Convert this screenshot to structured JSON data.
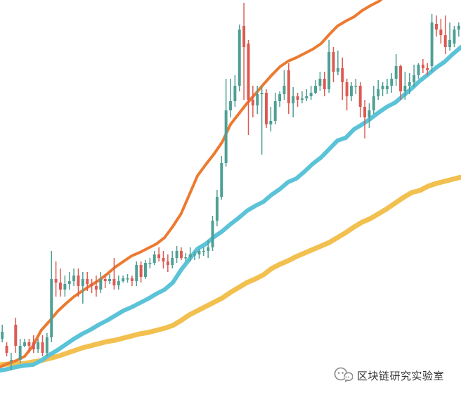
{
  "chart_data": {
    "type": "candlestick",
    "colors": {
      "up": "#4e9f94",
      "down": "#dc5a52",
      "ma_fast": "#ec7a30",
      "ma_mid": "#5bc3d8",
      "ma_slow": "#f2c04f"
    },
    "ylim": [
      0,
      562
    ],
    "candles": [
      {
        "o": 80,
        "c": 90,
        "h": 100,
        "l": 75
      },
      {
        "o": 70,
        "c": 60,
        "h": 75,
        "l": 55
      },
      {
        "o": 50,
        "c": 50,
        "h": 60,
        "l": 35
      },
      {
        "o": 100,
        "c": 70,
        "h": 110,
        "l": 60
      },
      {
        "o": 50,
        "c": 70,
        "h": 80,
        "l": 45
      },
      {
        "o": 70,
        "c": 75,
        "h": 80,
        "l": 68
      },
      {
        "o": 75,
        "c": 70,
        "h": 80,
        "l": 60
      },
      {
        "o": 75,
        "c": 65,
        "h": 85,
        "l": 60
      },
      {
        "o": 65,
        "c": 75,
        "h": 80,
        "l": 60
      },
      {
        "o": 75,
        "c": 60,
        "h": 85,
        "l": 55
      },
      {
        "o": 60,
        "c": 82,
        "h": 88,
        "l": 55
      },
      {
        "o": 82,
        "c": 165,
        "h": 205,
        "l": 75
      },
      {
        "o": 165,
        "c": 160,
        "h": 190,
        "l": 140
      },
      {
        "o": 160,
        "c": 150,
        "h": 180,
        "l": 140
      },
      {
        "o": 150,
        "c": 158,
        "h": 170,
        "l": 140
      },
      {
        "o": 158,
        "c": 162,
        "h": 175,
        "l": 150
      },
      {
        "o": 162,
        "c": 170,
        "h": 180,
        "l": 155
      },
      {
        "o": 170,
        "c": 155,
        "h": 180,
        "l": 140
      },
      {
        "o": 155,
        "c": 165,
        "h": 175,
        "l": 130
      },
      {
        "o": 165,
        "c": 158,
        "h": 175,
        "l": 148
      },
      {
        "o": 158,
        "c": 155,
        "h": 165,
        "l": 145
      },
      {
        "o": 155,
        "c": 150,
        "h": 170,
        "l": 140
      },
      {
        "o": 150,
        "c": 165,
        "h": 175,
        "l": 145
      },
      {
        "o": 165,
        "c": 162,
        "h": 170,
        "l": 152
      },
      {
        "o": 162,
        "c": 165,
        "h": 172,
        "l": 158
      },
      {
        "o": 165,
        "c": 156,
        "h": 195,
        "l": 150
      },
      {
        "o": 156,
        "c": 162,
        "h": 170,
        "l": 150
      },
      {
        "o": 162,
        "c": 166,
        "h": 170,
        "l": 160
      },
      {
        "o": 166,
        "c": 166,
        "h": 172,
        "l": 160
      },
      {
        "o": 166,
        "c": 162,
        "h": 170,
        "l": 155
      },
      {
        "o": 162,
        "c": 185,
        "h": 190,
        "l": 155
      },
      {
        "o": 185,
        "c": 168,
        "h": 190,
        "l": 160
      },
      {
        "o": 168,
        "c": 188,
        "h": 192,
        "l": 165
      },
      {
        "o": 188,
        "c": 188,
        "h": 195,
        "l": 180
      },
      {
        "o": 188,
        "c": 200,
        "h": 205,
        "l": 185
      },
      {
        "o": 200,
        "c": 195,
        "h": 210,
        "l": 190
      },
      {
        "o": 195,
        "c": 190,
        "h": 205,
        "l": 180
      },
      {
        "o": 190,
        "c": 185,
        "h": 200,
        "l": 175
      },
      {
        "o": 185,
        "c": 195,
        "h": 205,
        "l": 180
      },
      {
        "o": 195,
        "c": 205,
        "h": 212,
        "l": 188
      },
      {
        "o": 205,
        "c": 195,
        "h": 210,
        "l": 192
      },
      {
        "o": 195,
        "c": 196,
        "h": 202,
        "l": 190
      },
      {
        "o": 196,
        "c": 200,
        "h": 210,
        "l": 190
      },
      {
        "o": 200,
        "c": 200,
        "h": 205,
        "l": 192
      },
      {
        "o": 200,
        "c": 205,
        "h": 208,
        "l": 194
      },
      {
        "o": 205,
        "c": 205,
        "h": 210,
        "l": 198
      },
      {
        "o": 205,
        "c": 210,
        "h": 220,
        "l": 195
      },
      {
        "o": 210,
        "c": 248,
        "h": 255,
        "l": 205
      },
      {
        "o": 248,
        "c": 282,
        "h": 292,
        "l": 240
      },
      {
        "o": 282,
        "c": 330,
        "h": 340,
        "l": 278
      },
      {
        "o": 330,
        "c": 405,
        "h": 450,
        "l": 325
      },
      {
        "o": 405,
        "c": 418,
        "h": 450,
        "l": 395
      },
      {
        "o": 418,
        "c": 440,
        "h": 455,
        "l": 410
      },
      {
        "o": 440,
        "c": 520,
        "h": 527,
        "l": 432
      },
      {
        "o": 525,
        "c": 495,
        "h": 558,
        "l": 420
      },
      {
        "o": 500,
        "c": 420,
        "h": 505,
        "l": 370
      },
      {
        "o": 420,
        "c": 412,
        "h": 440,
        "l": 395
      },
      {
        "o": 412,
        "c": 428,
        "h": 440,
        "l": 400
      },
      {
        "o": 428,
        "c": 430,
        "h": 440,
        "l": 342
      },
      {
        "o": 430,
        "c": 385,
        "h": 435,
        "l": 380
      },
      {
        "o": 385,
        "c": 390,
        "h": 410,
        "l": 375
      },
      {
        "o": 390,
        "c": 418,
        "h": 430,
        "l": 385
      },
      {
        "o": 418,
        "c": 428,
        "h": 432,
        "l": 410
      },
      {
        "o": 428,
        "c": 440,
        "h": 462,
        "l": 420
      },
      {
        "o": 462,
        "c": 415,
        "h": 472,
        "l": 400
      },
      {
        "o": 415,
        "c": 425,
        "h": 438,
        "l": 395
      },
      {
        "o": 425,
        "c": 420,
        "h": 430,
        "l": 410
      },
      {
        "o": 420,
        "c": 422,
        "h": 432,
        "l": 415
      },
      {
        "o": 422,
        "c": 425,
        "h": 435,
        "l": 418
      },
      {
        "o": 425,
        "c": 430,
        "h": 440,
        "l": 420
      },
      {
        "o": 430,
        "c": 440,
        "h": 448,
        "l": 428
      },
      {
        "o": 440,
        "c": 450,
        "h": 460,
        "l": 433
      },
      {
        "o": 450,
        "c": 435,
        "h": 460,
        "l": 425
      },
      {
        "o": 435,
        "c": 488,
        "h": 505,
        "l": 430
      },
      {
        "o": 488,
        "c": 460,
        "h": 495,
        "l": 445
      },
      {
        "o": 460,
        "c": 465,
        "h": 490,
        "l": 455
      },
      {
        "o": 465,
        "c": 445,
        "h": 480,
        "l": 420
      },
      {
        "o": 445,
        "c": 425,
        "h": 450,
        "l": 405
      },
      {
        "o": 425,
        "c": 440,
        "h": 445,
        "l": 418
      },
      {
        "o": 440,
        "c": 440,
        "h": 450,
        "l": 428
      },
      {
        "o": 440,
        "c": 410,
        "h": 445,
        "l": 395
      },
      {
        "o": 410,
        "c": 395,
        "h": 420,
        "l": 365
      },
      {
        "o": 395,
        "c": 405,
        "h": 415,
        "l": 380
      },
      {
        "o": 405,
        "c": 425,
        "h": 440,
        "l": 400
      },
      {
        "o": 425,
        "c": 435,
        "h": 448,
        "l": 420
      },
      {
        "o": 435,
        "c": 440,
        "h": 445,
        "l": 425
      },
      {
        "o": 435,
        "c": 440,
        "h": 450,
        "l": 428
      },
      {
        "o": 440,
        "c": 450,
        "h": 458,
        "l": 430
      },
      {
        "o": 450,
        "c": 468,
        "h": 485,
        "l": 440
      },
      {
        "o": 468,
        "c": 432,
        "h": 470,
        "l": 420
      },
      {
        "o": 432,
        "c": 440,
        "h": 460,
        "l": 420
      },
      {
        "o": 440,
        "c": 445,
        "h": 458,
        "l": 428
      },
      {
        "o": 445,
        "c": 455,
        "h": 470,
        "l": 438
      },
      {
        "o": 455,
        "c": 470,
        "h": 472,
        "l": 450
      },
      {
        "o": 470,
        "c": 465,
        "h": 478,
        "l": 458
      },
      {
        "o": 465,
        "c": 462,
        "h": 472,
        "l": 455
      },
      {
        "o": 468,
        "c": 530,
        "h": 542,
        "l": 460
      },
      {
        "o": 528,
        "c": 520,
        "h": 540,
        "l": 510
      },
      {
        "o": 520,
        "c": 512,
        "h": 535,
        "l": 500
      },
      {
        "o": 512,
        "c": 495,
        "h": 540,
        "l": 485
      },
      {
        "o": 495,
        "c": 505,
        "h": 530,
        "l": 490
      },
      {
        "o": 500,
        "c": 520,
        "h": 525,
        "l": 495
      },
      {
        "o": 520,
        "c": 525,
        "h": 530,
        "l": 510
      }
    ],
    "moving_averages": [
      {
        "key": "ma_fast",
        "width": 4,
        "values": [
          40,
          45,
          49,
          55,
          70,
          92,
          105,
          119,
          130,
          140,
          148,
          156,
          163,
          172,
          182,
          190,
          198,
          203,
          209,
          215,
          224,
          240,
          258,
          285,
          312,
          328,
          343,
          360,
          385,
          400,
          415,
          428,
          442,
          455,
          467,
          475,
          480,
          486,
          492,
          500,
          513,
          525,
          532,
          538,
          547,
          554,
          560,
          569,
          580,
          594,
          612,
          620,
          628,
          635,
          640,
          643,
          645
        ]
      },
      {
        "key": "ma_mid",
        "width": 6,
        "values": [
          35,
          37,
          40,
          42,
          43,
          49,
          57,
          64,
          72,
          80,
          87,
          93,
          100,
          106,
          113,
          120,
          125,
          131,
          137,
          144,
          150,
          160,
          178,
          193,
          208,
          215,
          225,
          233,
          243,
          252,
          262,
          269,
          275,
          285,
          293,
          303,
          308,
          318,
          329,
          338,
          350,
          362,
          366,
          378,
          385,
          393,
          402,
          410,
          416,
          426,
          436,
          447,
          456,
          466,
          474,
          485,
          495
        ]
      },
      {
        "key": "ma_slow",
        "width": 7,
        "values": [
          43,
          44,
          44,
          45,
          47,
          49,
          52,
          55,
          59,
          63,
          67,
          70,
          73,
          76,
          78,
          81,
          84,
          87,
          89,
          92,
          95,
          99,
          106,
          114,
          120,
          126,
          132,
          138,
          146,
          153,
          160,
          165,
          171,
          180,
          186,
          191,
          197,
          202,
          207,
          212,
          217,
          224,
          231,
          239,
          246,
          251,
          258,
          265,
          273,
          281,
          288,
          291,
          297,
          301,
          304,
          307,
          310
        ]
      }
    ],
    "watermark": "区块链研究实验室"
  }
}
